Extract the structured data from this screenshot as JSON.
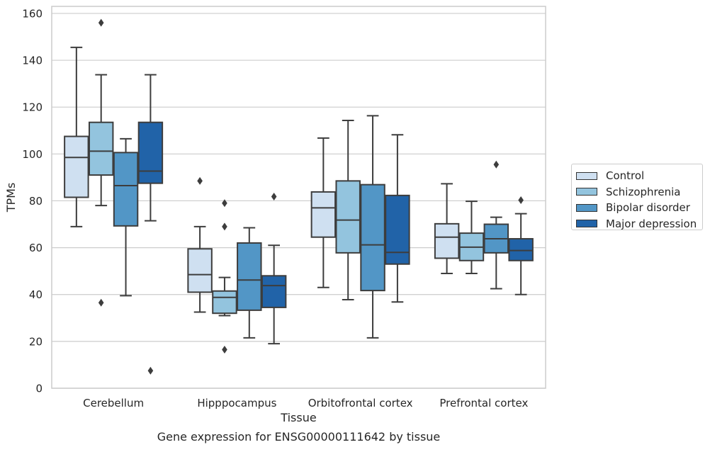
{
  "chart_data": {
    "type": "box",
    "caption": "Gene expression for ENSG00000111642 by tissue",
    "xlabel": "Tissue",
    "ylabel": "TPMs",
    "ylim": [
      0,
      163
    ],
    "yticks": [
      0,
      20,
      40,
      60,
      80,
      100,
      120,
      140,
      160
    ],
    "grid": true,
    "legend_position": "right",
    "categories": [
      "Cerebellum",
      "Hipppocampus",
      "Orbitofrontal cortex",
      "Prefrontal cortex"
    ],
    "series": [
      {
        "name": "Control",
        "color": "#cfe0f1",
        "boxes": [
          {
            "whisker_low": 69,
            "q1": 81.5,
            "median": 98.5,
            "q3": 107.5,
            "whisker_high": 145.5,
            "outliers": []
          },
          {
            "whisker_low": 32.5,
            "q1": 41,
            "median": 48.5,
            "q3": 59.5,
            "whisker_high": 69,
            "outliers": [
              88.5
            ]
          },
          {
            "whisker_low": 43,
            "q1": 64.5,
            "median": 77,
            "q3": 83.8,
            "whisker_high": 106.8,
            "outliers": []
          },
          {
            "whisker_low": 49,
            "q1": 55.5,
            "median": 64.5,
            "q3": 70.2,
            "whisker_high": 87.3,
            "outliers": []
          }
        ]
      },
      {
        "name": "Schizophrenia",
        "color": "#93c4de",
        "boxes": [
          {
            "whisker_low": 78,
            "q1": 91,
            "median": 101.2,
            "q3": 113.5,
            "whisker_high": 133.8,
            "outliers": [
              156,
              36.5
            ]
          },
          {
            "whisker_low": 31,
            "q1": 32,
            "median": 38.8,
            "q3": 41.5,
            "whisker_high": 47.3,
            "outliers": [
              79,
              69,
              16.5
            ]
          },
          {
            "whisker_low": 37.8,
            "q1": 57.8,
            "median": 71.8,
            "q3": 88.5,
            "whisker_high": 114.3,
            "outliers": []
          },
          {
            "whisker_low": 49,
            "q1": 54.5,
            "median": 60.2,
            "q3": 66.2,
            "whisker_high": 79.8,
            "outliers": []
          }
        ]
      },
      {
        "name": "Bipolar disorder",
        "color": "#5296c6",
        "boxes": [
          {
            "whisker_low": 39.5,
            "q1": 69.3,
            "median": 86.5,
            "q3": 100.6,
            "whisker_high": 106.5,
            "outliers": []
          },
          {
            "whisker_low": 21.5,
            "q1": 33.3,
            "median": 46.2,
            "q3": 62,
            "whisker_high": 68.5,
            "outliers": []
          },
          {
            "whisker_low": 21.5,
            "q1": 41.7,
            "median": 61.2,
            "q3": 86.9,
            "whisker_high": 116.3,
            "outliers": []
          },
          {
            "whisker_low": 42.5,
            "q1": 57.8,
            "median": 63.8,
            "q3": 70,
            "whisker_high": 73,
            "outliers": [
              95.5
            ]
          }
        ]
      },
      {
        "name": "Major depression",
        "color": "#2163a8",
        "boxes": [
          {
            "whisker_low": 71.5,
            "q1": 87.5,
            "median": 92.7,
            "q3": 113.5,
            "whisker_high": 133.8,
            "outliers": [
              7.5
            ]
          },
          {
            "whisker_low": 19,
            "q1": 34.5,
            "median": 43.8,
            "q3": 48,
            "whisker_high": 61,
            "outliers": [
              81.8
            ]
          },
          {
            "whisker_low": 36.8,
            "q1": 53,
            "median": 58,
            "q3": 82.3,
            "whisker_high": 108.2,
            "outliers": []
          },
          {
            "whisker_low": 40,
            "q1": 54.5,
            "median": 58.8,
            "q3": 63.8,
            "whisker_high": 74.5,
            "outliers": [
              80.3
            ]
          }
        ]
      }
    ]
  }
}
